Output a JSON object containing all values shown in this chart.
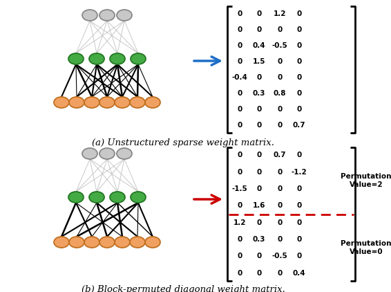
{
  "fig_width": 5.66,
  "fig_height": 4.22,
  "dpi": 100,
  "background_color": "#ffffff",
  "matrix_a": [
    [
      "0",
      "0",
      "1.2",
      "0"
    ],
    [
      "0",
      "0",
      "0",
      "0"
    ],
    [
      "0",
      "0.4",
      "-0.5",
      "0"
    ],
    [
      "0",
      "1.5",
      "0",
      "0"
    ],
    [
      "-0.4",
      "0",
      "0",
      "0"
    ],
    [
      "0",
      "0.3",
      "0.8",
      "0"
    ],
    [
      "0",
      "0",
      "0",
      "0"
    ],
    [
      "0",
      "0",
      "0",
      "0.7"
    ]
  ],
  "matrix_b": [
    [
      "0",
      "0",
      "0.7",
      "0"
    ],
    [
      "0",
      "0",
      "0",
      "-1.2"
    ],
    [
      "-1.5",
      "0",
      "0",
      "0"
    ],
    [
      "0",
      "1.6",
      "0",
      "0"
    ],
    [
      "1.2",
      "0",
      "0",
      "0"
    ],
    [
      "0",
      "0.3",
      "0",
      "0"
    ],
    [
      "0",
      "0",
      "-0.5",
      "0"
    ],
    [
      "0",
      "0",
      "0",
      "0.4"
    ]
  ],
  "caption_a": "(a) Unstructured sparse weight matrix.",
  "caption_b": "(b) Block-permuted diagonal weight matrix.",
  "arrow_color_a": "#1E6EC8",
  "arrow_color_b": "#CC0000",
  "perm_label_1": "Permutation\nValue=2",
  "perm_label_2": "Permutation\nValue=0",
  "gray_node_color": "#C8C8C8",
  "gray_node_edge": "#888888",
  "green_node_color": "#44AA44",
  "green_node_edge": "#227722",
  "orange_node_color": "#F0A060",
  "orange_node_edge": "#C07020",
  "dashed_line_color": "#CC0000",
  "matrix_fontsize": 7.5,
  "caption_fontsize": 9.5,
  "label_fontsize": 7.5
}
